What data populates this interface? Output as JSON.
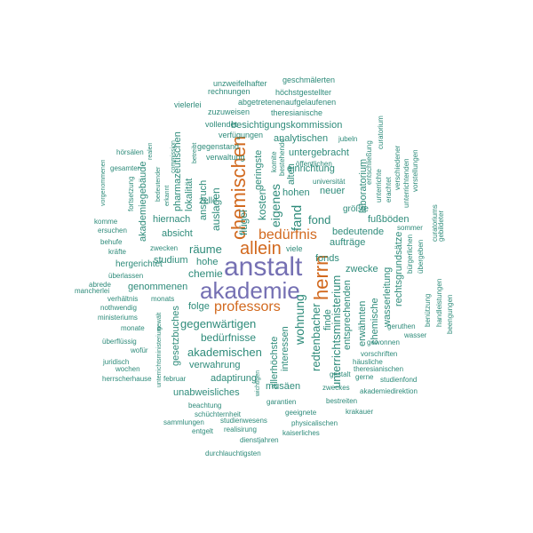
{
  "colors": {
    "green": "#2e8b7a",
    "orange": "#d2691e",
    "purple": "#7570b3"
  },
  "words": {
    "anstalt": "anstalt",
    "akademie": "akademie",
    "herrn": "herrn",
    "chemischen": "chemischen",
    "allein": "allein",
    "professors": "professors",
    "beduerfnis": "bedürfnis",
    "fand": "fand",
    "wohnung": "wohnung",
    "eigenes": "eigenes",
    "unterrichtsministerium": "unterrichtsministerium",
    "raeume": "räume",
    "fond": "fond",
    "redtenbacher": "redtenbacher",
    "chemie": "chemie",
    "gegenwaertigen": "gegenwärtigen",
    "beduerfnisse": "bedürfnisse",
    "akademischen": "akademischen",
    "verwahrung": "verwahrung",
    "adaptirung": "adaptirung",
    "unabweisliches": "unabweisliches",
    "musaeen": "musäen",
    "besichtigungskommission": "besichtigungskommission",
    "analytischen": "analytischen",
    "untergebracht": "untergebracht",
    "einrichtung": "einrichtung",
    "hohen": "hohen",
    "neuer": "neuer",
    "groesste": "größte",
    "fussboeden": "fußböden",
    "bedeutende": "bedeutende",
    "auftraege": "aufträge",
    "fonds": "fonds",
    "zwecke": "zwecke",
    "erwaehnten": "erwähnten",
    "entsprechenden": "entsprechenden",
    "finde": "finde",
    "interessen": "interessen",
    "allerhoechste": "allerhöchste",
    "laboratorium": "laboratorium",
    "wasserleitung": "wasserleitung",
    "rechtsgrundsaetze": "rechtsgrundsätze",
    "chemische": "chemische",
    "kosten": "kosten",
    "geringste": "geringste",
    "fluegel": "flügel",
    "auslagen": "auslagen",
    "anspruch": "anspruch",
    "lokalitaet": "lokalität",
    "pharmazeutischen": "pharmazeutischen",
    "hiernach": "hiernach",
    "absicht": "absicht",
    "studium": "studium",
    "hohe": "hohe",
    "hergerichtet": "hergerichtet",
    "genommenen": "genommenen",
    "folge": "folge",
    "gesetzbuches": "gesetzbuches",
    "akademiegebaeude": "akademiegebäude",
    "zelle": "zelle",
    "gegenstand": "gegenstand",
    "verwaltung": "verwaltung",
    "vollendet": "vollendet",
    "verfuegungen": "verfügungen",
    "zuzuweisen": "zuzuweisen",
    "vielerlei": "vielerlei",
    "rechnungen": "rechnungen",
    "unzweifelhafter": "unzweifelhafter",
    "geschmaelerten": "geschmälerten",
    "hoechstgestellter": "höchstgestellter",
    "abgetretenenaufgelaufenen": "abgetretenenaufgelaufenen",
    "theresianische": "theresianische",
    "jubeln": "jubeln",
    "oeffentlichen": "öffentlichen",
    "universitaet": "universität",
    "alten": "alten",
    "komite": "komite",
    "bestehende": "bestehende",
    "curatorium": "curatorium",
    "entschliessung": "entschließung",
    "unterrichte": "unterrichte",
    "erachtet": "erachtet",
    "verschiedener": "verschiedener",
    "unterrichtenden": "unterrichtenden",
    "vorstellungen": "vorstellungen",
    "curatoriums": "curatoriums",
    "gebildeter": "gebildeter",
    "sommer": "sommer",
    "buergerlichen": "bürgerlichen",
    "uebergeben": "übergeben",
    "benuetzung": "benützung",
    "handleistungen": "handleistungen",
    "beengungen": "beengungen",
    "geruthen": "geruthen",
    "wasser": "wasser",
    "gewonnen": "gewonnen",
    "vorschriften": "vorschriften",
    "haeusliche": "häusliche",
    "theresianischen": "theresianischen",
    "gerne": "gerne",
    "gestalt": "gestalt",
    "studienfond": "studienfond",
    "zweckes": "zweckes",
    "akademiedirektion": "akademiedirektion",
    "bestreiten": "bestreiten",
    "krakauer": "krakauer",
    "garantien": "garantien",
    "geeignete": "geeignete",
    "physicalischen": "physicalischen",
    "kaiserliches": "kaiserliches",
    "beachtung": "beachtung",
    "schuechternheit": "schüchternheit",
    "sammlungen": "sammlungen",
    "studienwesens": "studienwesens",
    "entgelt": "entgelt",
    "realisirung": "realisirung",
    "dienstjahren": "dienstjahren",
    "durchlauchtigsten": "durchlauchtigsten",
    "wichtigen": "wichtigen",
    "februar": "februar",
    "herrscherhause": "herrscherhause",
    "juridisch": "juridisch",
    "wofuer": "wofür",
    "ueberfluessig": "überflüssig",
    "monate": "monate",
    "wochen": "wochen",
    "unterrichtsministerium_small": "unterrichtsministerium",
    "gewaelt": "gewält",
    "monats": "monats",
    "ministeriums": "ministeriums",
    "nothwendig": "nothwendig",
    "verhaeltnis": "verhältnis",
    "mancherlei": "mancherlei",
    "abrede": "abrede",
    "ueberlassen": "überlassen",
    "kraefte": "kräfte",
    "behufe": "behufe",
    "ersuchen": "ersuchen",
    "komme": "komme",
    "zwecken": "zwecken",
    "viele": "viele",
    "vorgenommenen": "vorgenommenen",
    "gesamter": "gesamter",
    "hoersaelen": "hörsälen",
    "realen": "realen",
    "bedeutender": "bedeutender",
    "erkannt": "erkannt",
    "commission": "commission",
    "fortsetzung": "fortsetzung",
    "betreibt": "betreibt"
  }
}
